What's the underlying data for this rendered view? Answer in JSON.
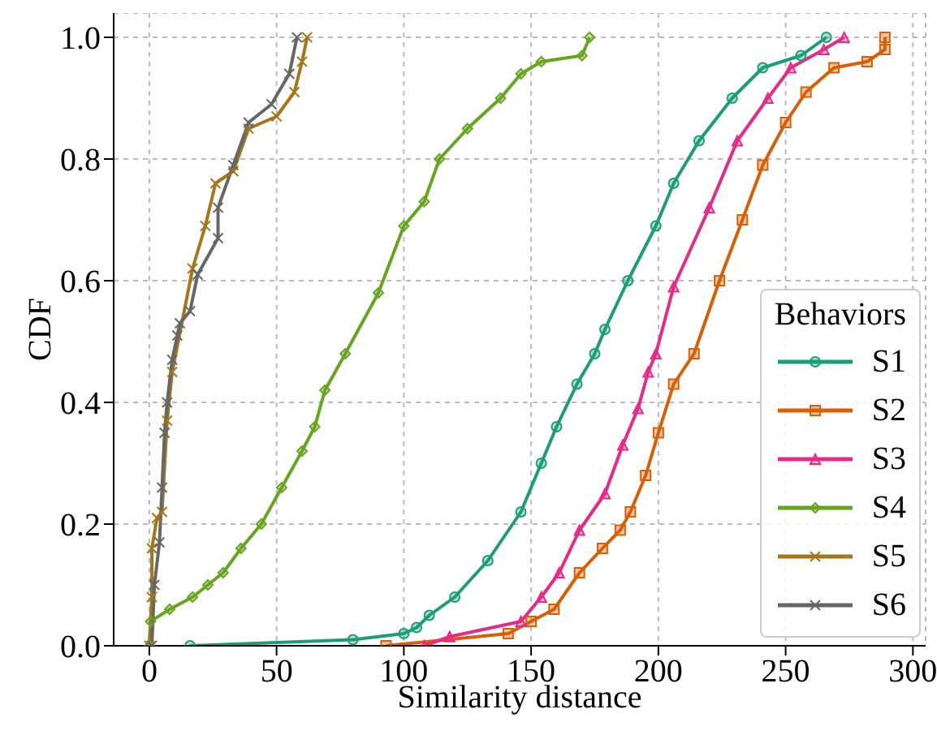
{
  "chart_data": {
    "type": "line",
    "xlabel": "Similarity distance",
    "ylabel": "CDF",
    "legend_title": "Behaviors",
    "legend": "bottom right",
    "grid": true,
    "line_style": "solid",
    "xlim": [
      -14,
      305
    ],
    "xticks": [
      0,
      50,
      100,
      150,
      200,
      250,
      300
    ],
    "ylim": [
      0,
      1.04
    ],
    "yticks": [
      {
        "value": 0,
        "label": "0.0"
      },
      0.2,
      0.4,
      0.6,
      0.8,
      {
        "value": 1,
        "label": "1.0"
      }
    ],
    "series": [
      {
        "name": "S1",
        "color": "#1b9e77",
        "marker": "circle",
        "x": [
          16,
          80,
          100,
          105,
          110,
          120,
          133,
          146,
          154,
          160,
          168,
          175,
          179,
          188,
          199,
          206,
          216,
          229,
          241,
          256,
          266
        ],
        "values": [
          0,
          0.01,
          0.02,
          0.03,
          0.05,
          0.08,
          0.14,
          0.22,
          0.3,
          0.36,
          0.43,
          0.48,
          0.52,
          0.6,
          0.69,
          0.76,
          0.83,
          0.9,
          0.95,
          0.97,
          1.0
        ]
      },
      {
        "name": "S2",
        "color": "#d95f02",
        "marker": "square",
        "x": [
          93,
          141,
          150,
          159,
          169,
          178,
          185,
          189,
          195,
          200,
          206,
          214,
          224,
          233,
          241,
          250,
          258,
          269,
          282,
          289,
          289
        ],
        "values": [
          0,
          0.02,
          0.04,
          0.06,
          0.12,
          0.16,
          0.19,
          0.22,
          0.28,
          0.35,
          0.43,
          0.48,
          0.6,
          0.7,
          0.79,
          0.86,
          0.91,
          0.95,
          0.96,
          0.98,
          1.0
        ]
      },
      {
        "name": "S3",
        "color": "#e7298a",
        "marker": "triangle",
        "x": [
          108,
          118,
          146,
          154,
          161,
          169,
          179,
          186,
          192,
          196,
          199,
          206,
          220,
          231,
          243,
          252,
          265,
          273
        ],
        "values": [
          0,
          0.015,
          0.04,
          0.08,
          0.12,
          0.19,
          0.25,
          0.33,
          0.39,
          0.45,
          0.48,
          0.59,
          0.72,
          0.83,
          0.9,
          0.95,
          0.98,
          1.0
        ]
      },
      {
        "name": "S4",
        "color": "#66a61e",
        "marker": "diamond",
        "x": [
          0,
          0.5,
          8,
          17,
          23,
          29,
          36,
          44,
          52,
          60,
          65,
          69,
          77,
          90,
          100,
          108,
          114,
          125,
          138,
          146,
          154,
          170,
          173
        ],
        "values": [
          0,
          0.04,
          0.06,
          0.08,
          0.1,
          0.12,
          0.16,
          0.2,
          0.26,
          0.32,
          0.36,
          0.42,
          0.48,
          0.58,
          0.69,
          0.73,
          0.8,
          0.85,
          0.9,
          0.94,
          0.96,
          0.97,
          1.0
        ]
      },
      {
        "name": "S5",
        "color": "#a6761d",
        "marker": "cross",
        "x": [
          0,
          1,
          1,
          3,
          5,
          7,
          9,
          17,
          22,
          26,
          33,
          39,
          50,
          57,
          60,
          62
        ],
        "values": [
          0,
          0.08,
          0.16,
          0.21,
          0.22,
          0.37,
          0.45,
          0.62,
          0.69,
          0.76,
          0.78,
          0.85,
          0.87,
          0.91,
          0.96,
          1.0
        ]
      },
      {
        "name": "S6",
        "color": "#666666",
        "marker": "cross",
        "x": [
          1,
          2,
          4,
          5,
          6,
          7,
          9,
          11,
          12,
          16,
          19,
          27,
          27,
          33,
          39,
          48,
          55,
          58
        ],
        "values": [
          0,
          0.1,
          0.17,
          0.26,
          0.35,
          0.4,
          0.47,
          0.51,
          0.53,
          0.55,
          0.61,
          0.67,
          0.72,
          0.79,
          0.86,
          0.89,
          0.94,
          1.0
        ]
      }
    ]
  }
}
